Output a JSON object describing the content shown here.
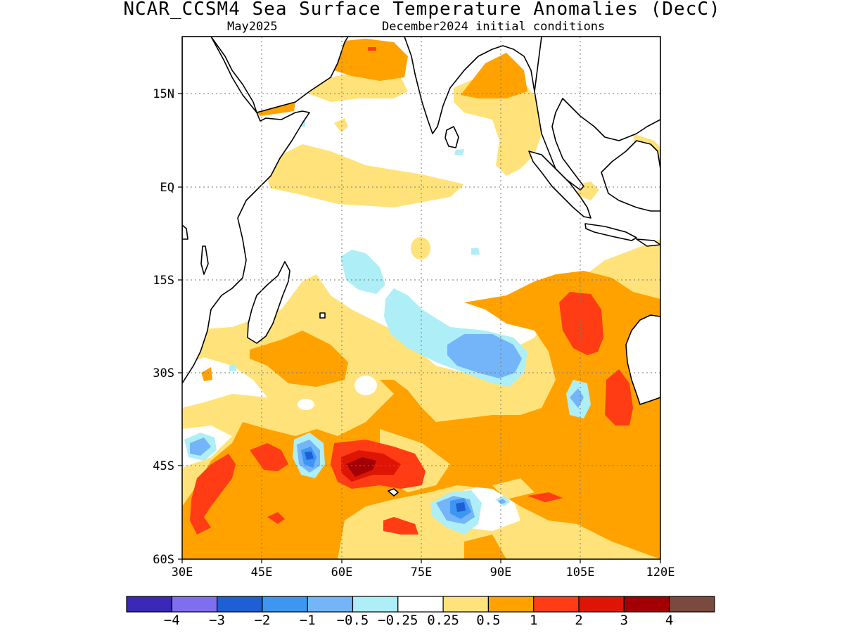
{
  "header": {
    "title": "NCAR_CCSM4 Sea Surface Temperature Anomalies (DecC)",
    "subtitle_left": "May2025",
    "subtitle_right": "December2024 initial conditions"
  },
  "axes": {
    "lat_labels": [
      "15N",
      "EQ",
      "15S",
      "30S",
      "45S",
      "60S"
    ],
    "lon_labels": [
      "30E",
      "45E",
      "60E",
      "75E",
      "90E",
      "105E",
      "120E"
    ],
    "grid": "dotted"
  },
  "colorbar": {
    "colors": [
      "#3a28b8",
      "#7f6ff0",
      "#1f5fd6",
      "#3d96f2",
      "#74b4f8",
      "#aeeef6",
      "#ffffff",
      "#ffe37a",
      "#ffa200",
      "#ff3c14",
      "#de1505",
      "#a30005",
      "#7a4a3e"
    ],
    "labels": [
      "−4",
      "−3",
      "−2",
      "−1",
      "−0.5",
      "−0.25",
      "0.25",
      "0.5",
      "1",
      "2",
      "3",
      "4"
    ]
  },
  "legend_colors": {
    "neg_025": "#aeeef6",
    "neg_05": "#74b4f8",
    "neg_1": "#3d96f2",
    "neg_2": "#1f5fd6",
    "pos_025": "#ffe37a",
    "pos_05": "#ffa200",
    "pos_1": "#ff3c14",
    "pos_2": "#de1505",
    "pos_3": "#a30005"
  }
}
